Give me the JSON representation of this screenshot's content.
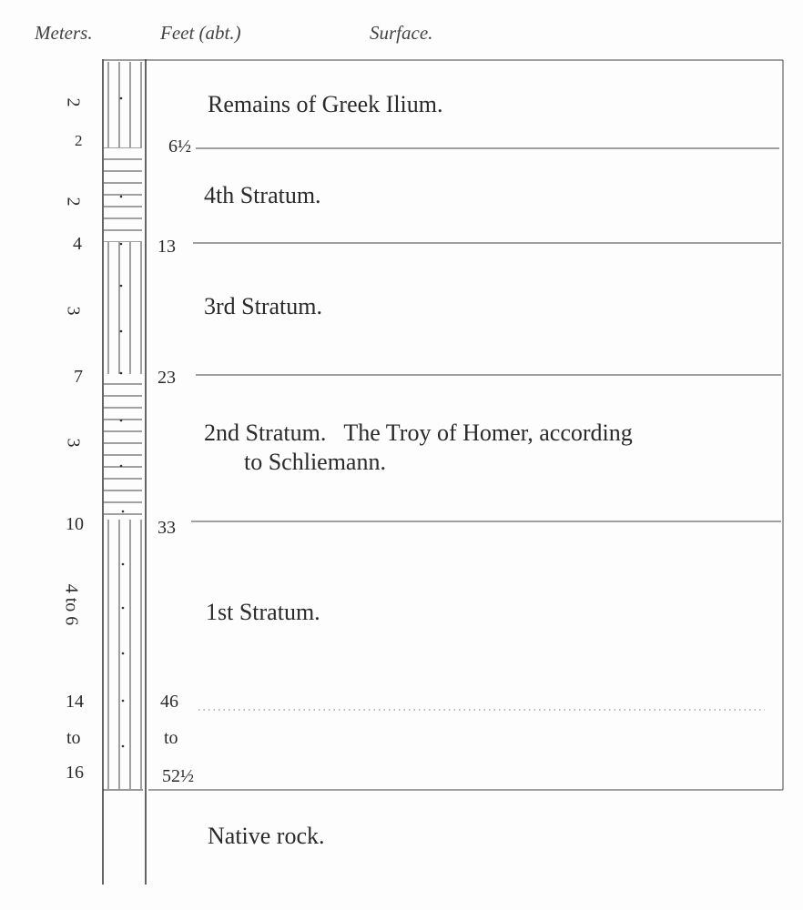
{
  "headers": {
    "meters": "Meters.",
    "feet": "Feet (abt.)",
    "surface": "Surface."
  },
  "strata": [
    {
      "label": "Remains of Greek Ilium."
    },
    {
      "label": "4th Stratum."
    },
    {
      "label": "3rd Stratum."
    },
    {
      "label": "2nd Stratum.   The Troy of Homer, according",
      "label_cont": "to Schliemann."
    },
    {
      "label": "1st Stratum."
    },
    {
      "label": "Native rock."
    }
  ],
  "meters": {
    "thickness": [
      "2",
      "2",
      "3",
      "3",
      "4 to 6"
    ],
    "depth": [
      "2",
      "4",
      "7",
      "10",
      "14",
      "to",
      "16"
    ]
  },
  "feet": [
    "6½",
    "13",
    "23",
    "33",
    "46",
    "to",
    "52½"
  ]
}
